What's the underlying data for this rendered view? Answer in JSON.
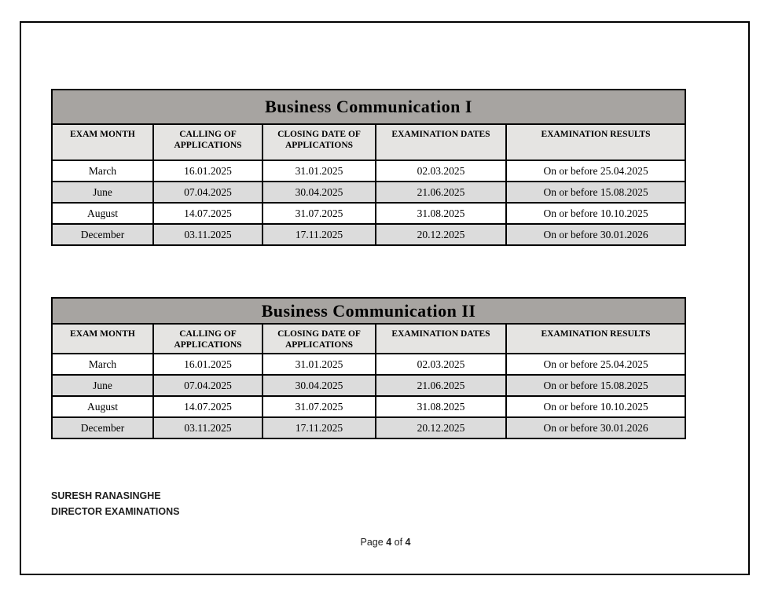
{
  "colors": {
    "title_band": "#a7a4a1",
    "header_row": "#e5e4e2",
    "alt_row": "#dcdcdc",
    "border": "#000000",
    "page_background": "#ffffff"
  },
  "tables": [
    {
      "title": "Business Communication I",
      "columns": [
        "EXAM MONTH",
        "CALLING OF APPLICATIONS",
        "CLOSING DATE OF APPLICATIONS",
        "EXAMINATION DATES",
        "EXAMINATION RESULTS"
      ],
      "rows": [
        [
          "March",
          "16.01.2025",
          "31.01.2025",
          "02.03.2025",
          "On or before 25.04.2025"
        ],
        [
          "June",
          "07.04.2025",
          "30.04.2025",
          "21.06.2025",
          "On or before 15.08.2025"
        ],
        [
          "August",
          "14.07.2025",
          "31.07.2025",
          "31.08.2025",
          "On or before 10.10.2025"
        ],
        [
          "December",
          "03.11.2025",
          "17.11.2025",
          "20.12.2025",
          "On or before 30.01.2026"
        ]
      ]
    },
    {
      "title": "Business Communication II",
      "columns": [
        "EXAM MONTH",
        "CALLING OF APPLICATIONS",
        "CLOSING DATE OF APPLICATIONS",
        "EXAMINATION DATES",
        "EXAMINATION RESULTS"
      ],
      "rows": [
        [
          "March",
          "16.01.2025",
          "31.01.2025",
          "02.03.2025",
          "On or before 25.04.2025"
        ],
        [
          "June",
          "07.04.2025",
          "30.04.2025",
          "21.06.2025",
          "On or before 15.08.2025"
        ],
        [
          "August",
          "14.07.2025",
          "31.07.2025",
          "31.08.2025",
          "On or before 10.10.2025"
        ],
        [
          "December",
          "03.11.2025",
          "17.11.2025",
          "20.12.2025",
          "On or before 30.01.2026"
        ]
      ]
    }
  ],
  "signature": {
    "name": "SURESH RANASINGHE",
    "title": "DIRECTOR EXAMINATIONS"
  },
  "footer": {
    "page_word": "Page",
    "page_number": "4",
    "of_word": "of",
    "page_total": "4"
  }
}
